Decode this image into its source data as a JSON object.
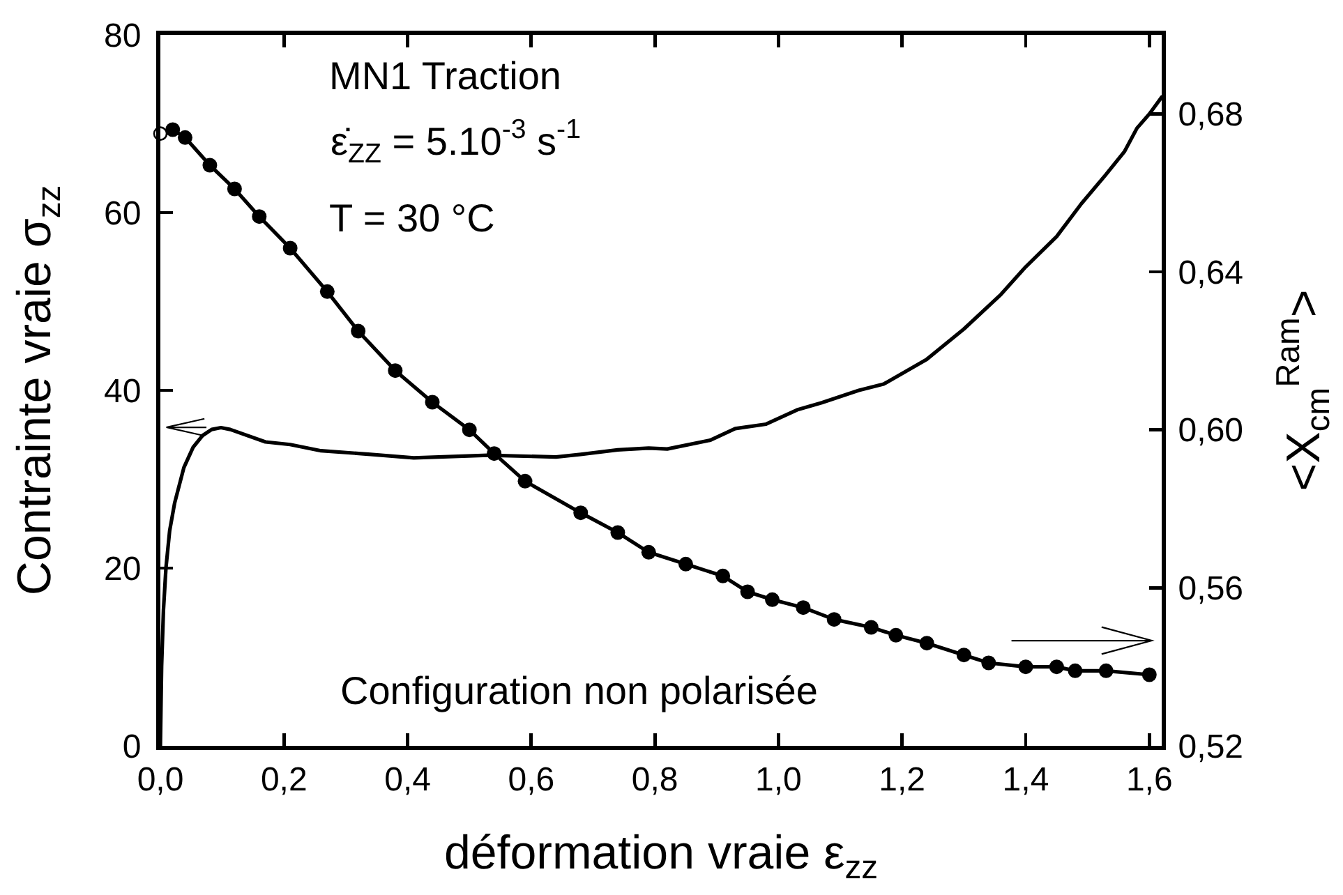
{
  "chart_data": {
    "type": "line",
    "xlabel": "déformation vraie ε$_{zz}$",
    "ylabel": "Contrainte vraie σ$_{zz}$",
    "y2label": "<X$_{cm}$$^{Ram}$>",
    "annotations": [
      "MN1 Traction",
      "ε̇$_{ZZ}$ = 5.10$^{-3}$ s$^{-1}$",
      "T = 30 °C",
      "Configuration non polarisée"
    ],
    "series": [
      {
        "color": "#000000",
        "marker": "none",
        "x": [
          0,
          0.002,
          0.005,
          0.009,
          0.015,
          0.023,
          0.038,
          0.053,
          0.068,
          0.083,
          0.098,
          0.113,
          0.17,
          0.21,
          0.26,
          0.34,
          0.41,
          0.49,
          0.53,
          0.64,
          0.68,
          0.74,
          0.79,
          0.82,
          0.89,
          0.93,
          0.98,
          1.03,
          1.07,
          1.13,
          1.17,
          1.24,
          1.3,
          1.36,
          1.4,
          1.45,
          1.49,
          1.53,
          1.56,
          1.58,
          1.6,
          1.62
        ],
        "values": [
          0,
          9.0,
          15.3,
          20.0,
          24.2,
          27.3,
          31.3,
          33.6,
          34.9,
          35.6,
          35.8,
          35.6,
          34.2,
          33.9,
          33.2,
          32.8,
          32.4,
          32.6,
          32.7,
          32.5,
          32.8,
          33.3,
          33.5,
          33.4,
          34.4,
          35.7,
          36.2,
          37.8,
          38.6,
          40.0,
          40.7,
          43.5,
          46.9,
          50.8,
          53.9,
          57.3,
          61.0,
          64.3,
          66.9,
          69.5,
          71.1,
          73.0
        ]
      },
      {
        "axis": "y2",
        "color": "#000000",
        "marker": "circle",
        "x": [
          0.02,
          0.04,
          0.08,
          0.12,
          0.16,
          0.21,
          0.27,
          0.32,
          0.38,
          0.44,
          0.5,
          0.54,
          0.59,
          0.68,
          0.74,
          0.79,
          0.85,
          0.91,
          0.95,
          0.99,
          1.04,
          1.09,
          1.15,
          1.19,
          1.24,
          1.3,
          1.34,
          1.4,
          1.45,
          1.48,
          1.53,
          1.6
        ],
        "values": [
          0.676,
          0.674,
          0.667,
          0.661,
          0.654,
          0.646,
          0.635,
          0.625,
          0.615,
          0.607,
          0.6,
          0.594,
          0.587,
          0.579,
          0.574,
          0.569,
          0.566,
          0.563,
          0.559,
          0.557,
          0.555,
          0.552,
          0.55,
          0.548,
          0.546,
          0.543,
          0.541,
          0.54,
          0.54,
          0.539,
          0.539,
          0.538
        ]
      },
      {
        "type": "scatter",
        "axis": "y2",
        "color": "#000000",
        "marker": "circle",
        "x": [
          0
        ],
        "values": [
          0.675
        ]
      }
    ],
    "xlim": [
      0,
      1.62
    ],
    "xticks": [
      {
        "value": 0,
        "label": "0,0"
      },
      {
        "value": 0.2,
        "label": "0,2"
      },
      {
        "value": 0.4,
        "label": "0,4"
      },
      {
        "value": 0.6,
        "label": "0,6"
      },
      {
        "value": 0.8,
        "label": "0,8"
      },
      {
        "value": 1.0,
        "label": "1,0"
      },
      {
        "value": 1.2,
        "label": "1,2"
      },
      {
        "value": 1.4,
        "label": "1,4"
      },
      {
        "value": 1.6,
        "label": "1,6"
      }
    ],
    "ylim": [
      0,
      80
    ],
    "yticks": [
      0,
      20,
      40,
      60,
      80
    ],
    "y2lim": [
      0.52,
      0.7
    ],
    "y2ticks": [
      {
        "value": 0.52,
        "label": "0,52"
      },
      {
        "value": 0.56,
        "label": "0,56"
      },
      {
        "value": 0.6,
        "label": "0,60"
      },
      {
        "value": 0.64,
        "label": "0,64"
      },
      {
        "value": 0.68,
        "label": "0,68"
      }
    ],
    "grid": false
  }
}
